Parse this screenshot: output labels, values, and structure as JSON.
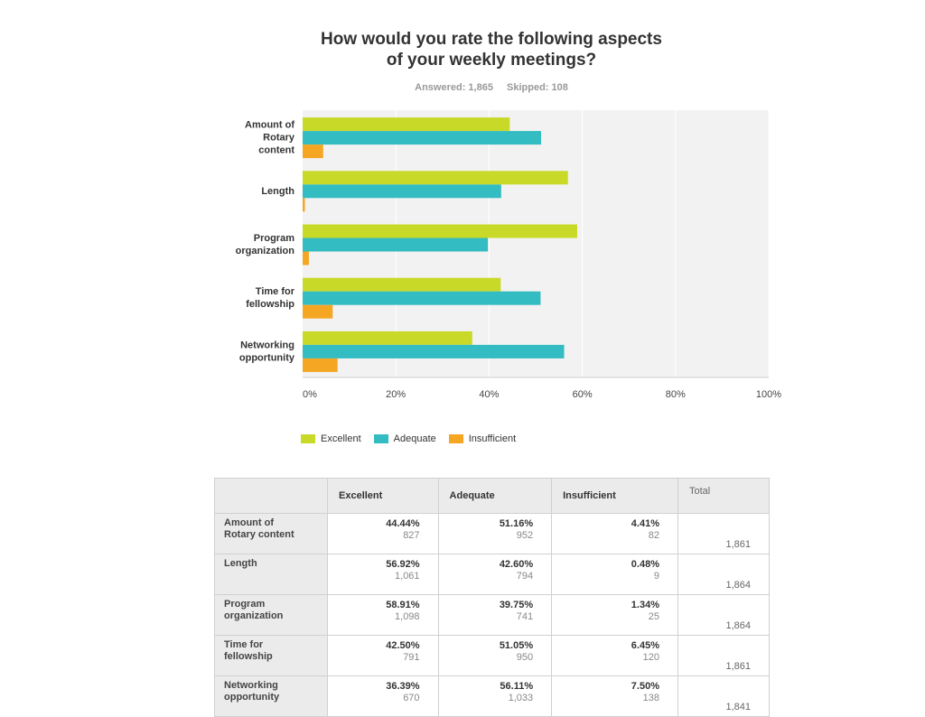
{
  "title_lines": [
    "How would you rate the following aspects",
    "of your weekly meetings?"
  ],
  "answered": "Answered: 1,865",
  "skipped": "Skipped: 108",
  "colors": {
    "excellent": "#c8d928",
    "adequate": "#33bcc1",
    "insufficient": "#f5a623",
    "plot_bg": "#f2f2f2"
  },
  "chart_data": {
    "type": "bar",
    "orientation": "horizontal",
    "title": "How would you rate the following aspects of your weekly meetings?",
    "categories": [
      "Amount of Rotary content",
      "Length",
      "Program organization",
      "Time for fellowship",
      "Networking opportunity"
    ],
    "category_lines": [
      [
        "Amount of",
        "Rotary",
        "content"
      ],
      [
        "Length"
      ],
      [
        "Program",
        "organization"
      ],
      [
        "Time for",
        "fellowship"
      ],
      [
        "Networking",
        "opportunity"
      ]
    ],
    "series": [
      {
        "name": "Excellent",
        "values": [
          44.44,
          56.92,
          58.91,
          42.5,
          36.39
        ]
      },
      {
        "name": "Adequate",
        "values": [
          51.16,
          42.6,
          39.75,
          51.05,
          56.11
        ]
      },
      {
        "name": "Insufficient",
        "values": [
          4.41,
          0.48,
          1.34,
          6.45,
          7.5
        ]
      }
    ],
    "xlim": [
      0,
      100
    ],
    "x_ticks": [
      "0%",
      "20%",
      "40%",
      "60%",
      "80%",
      "100%"
    ],
    "grid": true,
    "legend": "bottom"
  },
  "table": {
    "headers": [
      "Excellent",
      "Adequate",
      "Insufficient"
    ],
    "total_header": "Total",
    "rows": [
      {
        "label_lines": [
          "Amount of",
          "Rotary content"
        ],
        "cells": [
          [
            "44.44%",
            "827"
          ],
          [
            "51.16%",
            "952"
          ],
          [
            "4.41%",
            "82"
          ]
        ],
        "total": "1,861"
      },
      {
        "label_lines": [
          "Length"
        ],
        "cells": [
          [
            "56.92%",
            "1,061"
          ],
          [
            "42.60%",
            "794"
          ],
          [
            "0.48%",
            "9"
          ]
        ],
        "total": "1,864"
      },
      {
        "label_lines": [
          "Program",
          "organization"
        ],
        "cells": [
          [
            "58.91%",
            "1,098"
          ],
          [
            "39.75%",
            "741"
          ],
          [
            "1.34%",
            "25"
          ]
        ],
        "total": "1,864"
      },
      {
        "label_lines": [
          "Time for",
          "fellowship"
        ],
        "cells": [
          [
            "42.50%",
            "791"
          ],
          [
            "51.05%",
            "950"
          ],
          [
            "6.45%",
            "120"
          ]
        ],
        "total": "1,861"
      },
      {
        "label_lines": [
          "Networking",
          "opportunity"
        ],
        "cells": [
          [
            "36.39%",
            "670"
          ],
          [
            "56.11%",
            "1,033"
          ],
          [
            "7.50%",
            "138"
          ]
        ],
        "total": "1,841"
      }
    ]
  }
}
